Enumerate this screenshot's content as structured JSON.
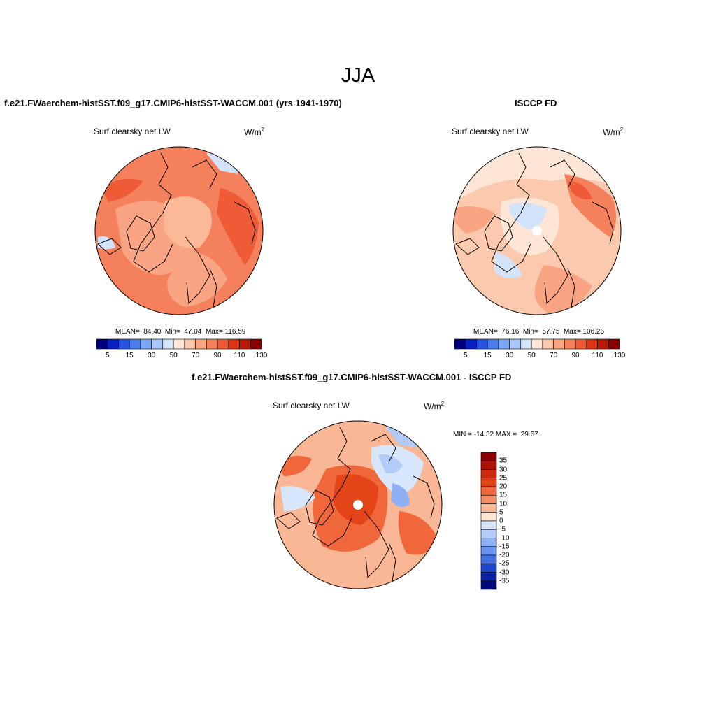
{
  "figure": {
    "title": "JJA"
  },
  "panels": {
    "model": {
      "title": "f.e21.FWaerchem-histSST.f09_g17.CMIP6-histSST-WACCM.001 (yrs 1941-1970)",
      "variable": "Surf clearsky net LW",
      "units": "W/m",
      "units_exp": "2",
      "stats": "MEAN=  84.40  Min=  47.04  Max= 116.59",
      "mean": 84.4,
      "min": 47.04,
      "max": 116.59
    },
    "obs": {
      "title": "ISCCP FD",
      "variable": "Surf clearsky net LW",
      "units": "W/m",
      "units_exp": "2",
      "stats": "MEAN=  76.16  Min=  57.75  Max= 106.26",
      "mean": 76.16,
      "min": 57.75,
      "max": 106.26
    },
    "diff": {
      "title": "f.e21.FWaerchem-histSST.f09_g17.CMIP6-histSST-WACCM.001 - ISCCP FD",
      "variable": "Surf clearsky net LW",
      "units": "W/m",
      "units_exp": "2",
      "stats": "MIN = -14.32 MAX =  29.67",
      "min": -14.32,
      "max": 29.67
    }
  },
  "colorbars": {
    "abs": {
      "labels": [
        "5",
        "15",
        "30",
        "50",
        "70",
        "90",
        "110",
        "130"
      ],
      "colors": [
        "#00007a",
        "#0a1fc2",
        "#2a52e0",
        "#4a7df0",
        "#7aa6f5",
        "#a9c6f8",
        "#d3e3fa",
        "#fde6d6",
        "#fbc9ad",
        "#f9a583",
        "#f5805c",
        "#ef5a37",
        "#de3414",
        "#bb1a08",
        "#8a0000"
      ]
    },
    "diff": {
      "labels": [
        "35",
        "30",
        "25",
        "20",
        "15",
        "10",
        "5",
        "0",
        "-5",
        "-10",
        "-15",
        "-20",
        "-25",
        "-30",
        "-35"
      ],
      "colors": [
        "#8a0000",
        "#ad1306",
        "#cc2a0d",
        "#e34418",
        "#f0673c",
        "#f58e68",
        "#f9b796",
        "#fde5d3",
        "#d7e6fa",
        "#b3ccf7",
        "#8fb1f3",
        "#6a93ef",
        "#4471e6",
        "#1e45cf",
        "#0b22a8",
        "#000b7a"
      ]
    }
  },
  "colors": {
    "land_outline": "#000000",
    "map_border": "#000000"
  }
}
